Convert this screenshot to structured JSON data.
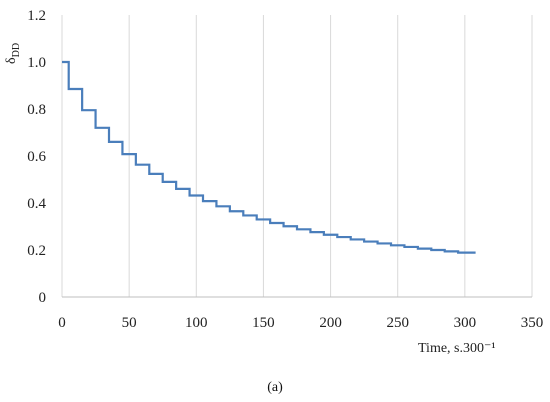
{
  "chart_data": {
    "type": "line",
    "title": "",
    "xlabel": "Time, s.300⁻¹",
    "ylabel": "δ",
    "ylabel_subscript": "DD",
    "xlim": [
      0,
      350
    ],
    "ylim": [
      0,
      1.2
    ],
    "x_ticks": [
      "0",
      "50",
      "100",
      "150",
      "200",
      "250",
      "300",
      "350"
    ],
    "y_ticks": [
      "0",
      "0.2",
      "0.4",
      "0.6",
      "0.8",
      "1.0",
      "1.2"
    ],
    "grid": "vertical",
    "legend": "none",
    "line_color": "#4a7ebb",
    "step_points": [
      [
        0,
        1.0
      ],
      [
        5,
        1.0
      ],
      [
        5,
        0.885
      ],
      [
        15,
        0.885
      ],
      [
        15,
        0.795
      ],
      [
        25,
        0.795
      ],
      [
        25,
        0.72
      ],
      [
        35,
        0.72
      ],
      [
        35,
        0.66
      ],
      [
        45,
        0.66
      ],
      [
        45,
        0.608
      ],
      [
        55,
        0.608
      ],
      [
        55,
        0.563
      ],
      [
        65,
        0.563
      ],
      [
        65,
        0.524
      ],
      [
        75,
        0.524
      ],
      [
        75,
        0.49
      ],
      [
        85,
        0.49
      ],
      [
        85,
        0.46
      ],
      [
        95,
        0.46
      ],
      [
        95,
        0.432
      ],
      [
        105,
        0.432
      ],
      [
        105,
        0.408
      ],
      [
        115,
        0.408
      ],
      [
        115,
        0.386
      ],
      [
        125,
        0.386
      ],
      [
        125,
        0.365
      ],
      [
        135,
        0.365
      ],
      [
        135,
        0.347
      ],
      [
        145,
        0.347
      ],
      [
        145,
        0.33
      ],
      [
        155,
        0.33
      ],
      [
        155,
        0.315
      ],
      [
        165,
        0.315
      ],
      [
        165,
        0.301
      ],
      [
        175,
        0.301
      ],
      [
        175,
        0.288
      ],
      [
        185,
        0.288
      ],
      [
        185,
        0.276
      ],
      [
        195,
        0.276
      ],
      [
        195,
        0.265
      ],
      [
        205,
        0.265
      ],
      [
        205,
        0.255
      ],
      [
        215,
        0.255
      ],
      [
        215,
        0.245
      ],
      [
        225,
        0.245
      ],
      [
        225,
        0.236
      ],
      [
        235,
        0.236
      ],
      [
        235,
        0.228
      ],
      [
        245,
        0.228
      ],
      [
        245,
        0.22
      ],
      [
        255,
        0.22
      ],
      [
        255,
        0.213
      ],
      [
        265,
        0.213
      ],
      [
        265,
        0.206
      ],
      [
        275,
        0.206
      ],
      [
        275,
        0.2
      ],
      [
        285,
        0.2
      ],
      [
        285,
        0.194
      ],
      [
        295,
        0.194
      ],
      [
        295,
        0.189
      ],
      [
        308,
        0.189
      ]
    ],
    "caption": "(a)"
  }
}
